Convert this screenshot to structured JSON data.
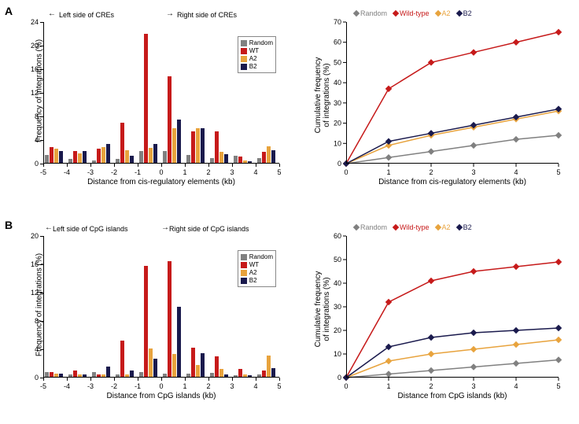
{
  "colors": {
    "random": "#808080",
    "wt": "#c61a1a",
    "a2": "#e8a33d",
    "b2": "#1a1a4d",
    "axis": "#000000",
    "bg": "#ffffff"
  },
  "legend_bar": [
    "Random",
    "WT",
    "A2",
    "B2"
  ],
  "legend_line": [
    "Random",
    "Wild-type",
    "A2",
    "B2"
  ],
  "panelA": {
    "label": "A",
    "bar": {
      "ylim": [
        0,
        24
      ],
      "ytick_step": 4,
      "x_categories": [
        -5,
        -4,
        -3,
        -2,
        -1,
        0,
        1,
        2,
        3,
        4,
        5
      ],
      "x_tick_labels": [
        "-5",
        "-4",
        "-3",
        "-2",
        "-1",
        "0",
        "1",
        "2",
        "3",
        "4",
        "5"
      ],
      "region_left": "Left side of CREs",
      "region_right": "Right side of CREs",
      "y_title": "Frequency of integrations (%)",
      "x_title": "Distance from cis-regulatory elements (kb)",
      "series": {
        "random": [
          0,
          1.5,
          0.8,
          0.5,
          0.8,
          2.2,
          2.1,
          1.5,
          1.0,
          1.3,
          1.0,
          0
        ],
        "wt": [
          0,
          2.8,
          2.2,
          2.5,
          7.0,
          22.0,
          14.8,
          5.5,
          5.5,
          1.2,
          2.0,
          0
        ],
        "a2": [
          0,
          2.5,
          1.8,
          2.8,
          2.3,
          2.7,
          6.0,
          6.0,
          2.0,
          0.5,
          3.0,
          0
        ],
        "b2": [
          0,
          2.2,
          2.1,
          3.4,
          1.3,
          3.3,
          7.5,
          6.0,
          1.6,
          0.4,
          2.3,
          0
        ]
      }
    },
    "line": {
      "xlim": [
        0,
        5
      ],
      "ylim": [
        0,
        70
      ],
      "ytick_step": 10,
      "x_ticks": [
        0,
        1,
        2,
        3,
        4,
        5
      ],
      "y_title": "Cumulative frequency\nof integrations (%)",
      "x_title": "Distance from cis-regulatory elements (kb)",
      "series": {
        "random": [
          0,
          3,
          6,
          9,
          12,
          14
        ],
        "wt": [
          0,
          37,
          50,
          55,
          60,
          65
        ],
        "a2": [
          0,
          9,
          14,
          18,
          22,
          26
        ],
        "b2": [
          0,
          11,
          15,
          19,
          23,
          27
        ]
      }
    }
  },
  "panelB": {
    "label": "B",
    "bar": {
      "ylim": [
        0,
        20
      ],
      "ytick_step": 4,
      "x_categories": [
        -5,
        -4,
        -3,
        -2,
        -1,
        0,
        1,
        2,
        3,
        4,
        5
      ],
      "x_tick_labels": [
        "-5",
        "-4",
        "-3",
        "-2",
        "-1",
        "0",
        "1",
        "2",
        "3",
        "4",
        "5"
      ],
      "region_left": "Left side of CpG islands",
      "region_right": "Right side of CpG islands",
      "y_title": "Frequency of integrations (%)",
      "x_title": "Distance from CpG islands (kb)",
      "series": {
        "random": [
          0,
          0.8,
          0.4,
          0.8,
          0.4,
          0.8,
          0.6,
          0.6,
          0.7,
          0.3,
          0.5,
          0
        ],
        "wt": [
          0,
          0.8,
          1.0,
          0.5,
          5.2,
          15.8,
          16.4,
          4.2,
          3.0,
          1.2,
          1.0,
          0
        ],
        "a2": [
          0,
          0.6,
          0.4,
          0.5,
          0.5,
          4.1,
          3.3,
          1.8,
          1.2,
          0.5,
          3.1,
          0
        ],
        "b2": [
          0,
          0.6,
          0.4,
          1.6,
          1.0,
          2.7,
          10.0,
          3.4,
          0.5,
          0.3,
          1.3,
          0
        ]
      }
    },
    "line": {
      "xlim": [
        0,
        5
      ],
      "ylim": [
        0,
        60
      ],
      "ytick_step": 10,
      "x_ticks": [
        0,
        1,
        2,
        3,
        4,
        5
      ],
      "y_title": "Cumulative frequency\nof integrations (%)",
      "x_title": "Distance from CpG islands (kb)",
      "series": {
        "random": [
          0,
          1.5,
          3,
          4.5,
          6,
          7.5
        ],
        "wt": [
          0,
          32,
          41,
          45,
          47,
          49
        ],
        "a2": [
          0,
          7,
          10,
          12,
          14,
          16
        ],
        "b2": [
          0,
          13,
          17,
          19,
          20,
          21
        ]
      }
    }
  }
}
